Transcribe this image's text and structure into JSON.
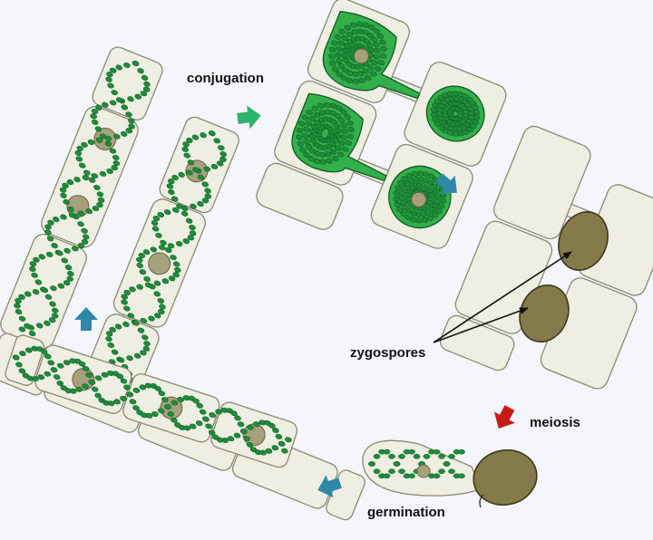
{
  "labels": {
    "conjugation": "conjugation",
    "zygospores": "zygospores",
    "meiosis": "meiosis",
    "germination": "germination"
  },
  "colors": {
    "background": "#f4f6fb",
    "cell_fill": "#efeee3",
    "cell_stroke": "#8a8a72",
    "chloroplast": "#1e8c3a",
    "chloroplast_dark": "#0d5a22",
    "conjugating_protoplast": "#33b04a",
    "nucleus": "#a7a07c",
    "zygospore": "#857a4a",
    "zygospore_stroke": "#3d3a20",
    "arrow_green": "#2db36a",
    "arrow_teal": "#2f88a6",
    "arrow_red": "#c41d16"
  },
  "icons": {
    "stage_arrows": "block-arrow-icon",
    "pointer_arrows": "line-arrow-icon"
  }
}
